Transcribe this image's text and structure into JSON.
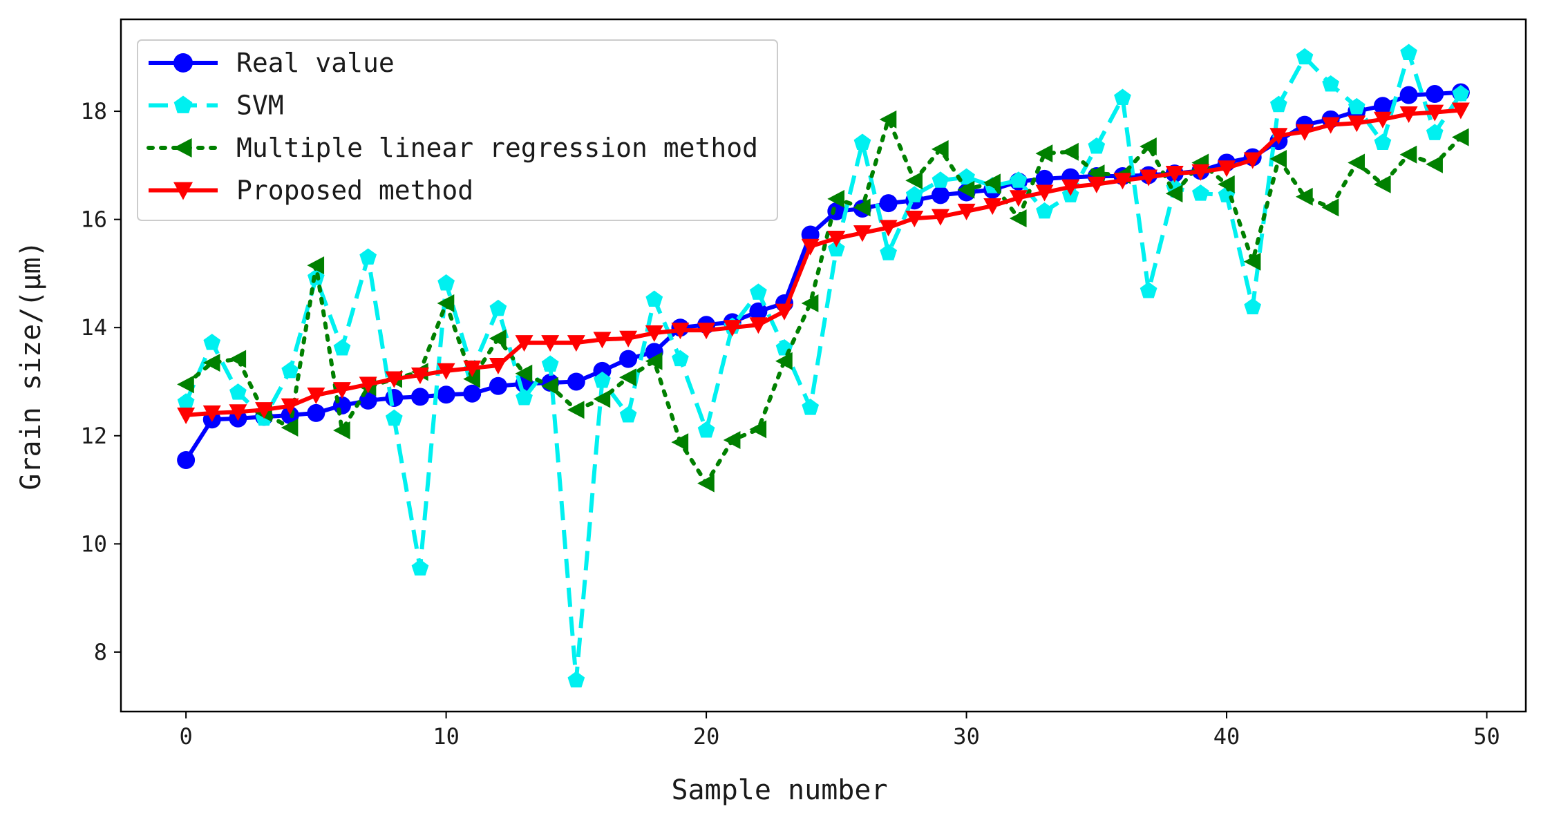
{
  "chart_data": {
    "type": "line",
    "title": "",
    "xlabel": "Sample number",
    "ylabel": "Grain size/(μm)",
    "xlim": [
      -2.5,
      51.5
    ],
    "ylim": [
      6.9,
      19.7
    ],
    "xticks": [
      0,
      10,
      20,
      30,
      40,
      50
    ],
    "yticks": [
      8,
      10,
      12,
      14,
      16,
      18
    ],
    "legend_position": "top-left",
    "x": [
      0,
      1,
      2,
      3,
      4,
      5,
      6,
      7,
      8,
      9,
      10,
      11,
      12,
      13,
      14,
      15,
      16,
      17,
      18,
      19,
      20,
      21,
      22,
      23,
      24,
      25,
      26,
      27,
      28,
      29,
      30,
      31,
      32,
      33,
      34,
      35,
      36,
      37,
      38,
      39,
      40,
      41,
      42,
      43,
      44,
      45,
      46,
      47,
      48,
      49
    ],
    "series": [
      {
        "name": "Real value",
        "color": "#0000ff",
        "marker": "circle",
        "linestyle": "solid",
        "values": [
          11.55,
          12.3,
          12.32,
          12.35,
          12.38,
          12.42,
          12.56,
          12.65,
          12.7,
          12.72,
          12.76,
          12.78,
          12.92,
          12.96,
          12.98,
          13.0,
          13.2,
          13.42,
          13.55,
          14.0,
          14.05,
          14.1,
          14.3,
          14.45,
          15.72,
          16.15,
          16.2,
          16.3,
          16.35,
          16.45,
          16.5,
          16.55,
          16.7,
          16.75,
          16.78,
          16.8,
          16.8,
          16.82,
          16.85,
          16.9,
          17.05,
          17.15,
          17.45,
          17.75,
          17.85,
          18.0,
          18.1,
          18.3,
          18.32,
          18.35
        ]
      },
      {
        "name": "SVM",
        "color": "#00f0f0",
        "marker": "pentagon",
        "linestyle": "dashed",
        "values": [
          12.62,
          13.72,
          12.8,
          12.32,
          13.2,
          14.92,
          13.62,
          15.3,
          12.32,
          9.55,
          14.82,
          13.22,
          14.35,
          12.7,
          13.32,
          7.48,
          13.02,
          12.38,
          14.52,
          13.42,
          12.1,
          14.02,
          14.65,
          13.62,
          12.52,
          15.45,
          17.42,
          15.38,
          16.45,
          16.72,
          16.78,
          16.62,
          16.72,
          16.15,
          16.45,
          17.35,
          18.25,
          14.68,
          16.58,
          16.48,
          16.45,
          14.38,
          18.12,
          19.0,
          18.5,
          18.08,
          17.42,
          19.08,
          17.6,
          18.32
        ]
      },
      {
        "name": "Multiple linear regression method",
        "color": "#008000",
        "marker": "triangle-left",
        "linestyle": "dotted",
        "values": [
          12.95,
          13.35,
          13.42,
          12.42,
          12.15,
          15.15,
          12.1,
          12.9,
          13.05,
          13.18,
          14.45,
          13.05,
          13.8,
          13.15,
          12.92,
          12.48,
          12.68,
          13.08,
          13.38,
          11.88,
          11.12,
          11.92,
          12.12,
          13.38,
          14.45,
          16.38,
          16.22,
          17.85,
          16.72,
          17.3,
          16.55,
          16.68,
          16.02,
          17.22,
          17.25,
          16.85,
          16.82,
          17.35,
          16.48,
          17.05,
          16.65,
          15.22,
          17.12,
          16.42,
          16.22,
          17.05,
          16.65,
          17.2,
          17.02,
          17.52
        ]
      },
      {
        "name": "Proposed method",
        "color": "#ff0000",
        "marker": "triangle-down",
        "linestyle": "solid",
        "values": [
          12.38,
          12.42,
          12.44,
          12.48,
          12.55,
          12.75,
          12.85,
          12.95,
          13.05,
          13.12,
          13.2,
          13.25,
          13.3,
          13.72,
          13.72,
          13.72,
          13.78,
          13.8,
          13.9,
          13.95,
          13.95,
          14.0,
          14.05,
          14.3,
          15.5,
          15.65,
          15.75,
          15.85,
          16.02,
          16.05,
          16.15,
          16.25,
          16.4,
          16.5,
          16.6,
          16.65,
          16.72,
          16.78,
          16.85,
          16.88,
          16.95,
          17.1,
          17.55,
          17.62,
          17.75,
          17.78,
          17.85,
          17.95,
          17.98,
          18.02
        ]
      }
    ]
  }
}
